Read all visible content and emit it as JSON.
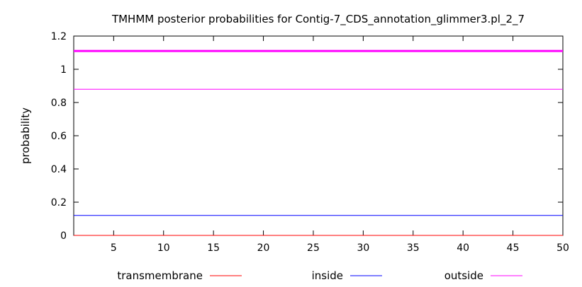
{
  "chart_data": {
    "type": "line",
    "title": "TMHMM posterior probabilities for Contig-7_CDS_annotation_glimmer3.pl_2_7",
    "xlabel": "",
    "ylabel": "probability",
    "xlim": [
      1,
      50
    ],
    "ylim": [
      0,
      1.2
    ],
    "x_ticks": [
      5,
      10,
      15,
      20,
      25,
      30,
      35,
      40,
      45,
      50
    ],
    "y_ticks": [
      0,
      0.2,
      0.4,
      0.6,
      0.8,
      1,
      1.2
    ],
    "grid": false,
    "legend_position": "bottom",
    "x": [
      1,
      50
    ],
    "series": [
      {
        "name": "transmembrane",
        "color": "#ff0000",
        "values": [
          0,
          0
        ]
      },
      {
        "name": "inside",
        "color": "#0000ff",
        "values": [
          0.12,
          0.12
        ]
      },
      {
        "name": "outside",
        "color": "#ff00ff",
        "values": [
          0.88,
          0.88
        ]
      }
    ],
    "reference_line": {
      "y": 1.11,
      "color": "#ff00ff"
    }
  }
}
